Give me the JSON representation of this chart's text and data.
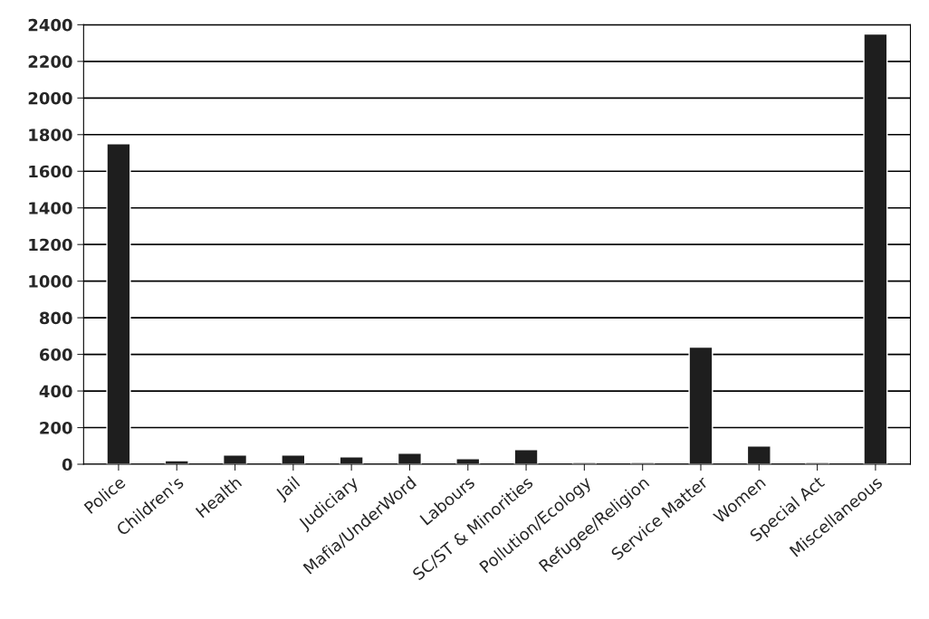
{
  "chart_data": {
    "type": "bar",
    "categories": [
      "Police",
      "Children's",
      "Health",
      "Jail",
      "Judiciary",
      "Mafia/UnderWord",
      "Labours",
      "SC/ST & Minorities",
      "Pollution/Ecology",
      "Refugee/Religion",
      "Service Matter",
      "Women",
      "Special Act",
      "Miscellaneous"
    ],
    "values": [
      1750,
      20,
      50,
      50,
      40,
      60,
      30,
      80,
      10,
      10,
      640,
      100,
      10,
      2350
    ],
    "color": "#1e1e1e",
    "ylim": [
      0,
      2400
    ],
    "yticks": [
      0,
      200,
      400,
      600,
      800,
      1000,
      1200,
      1400,
      1600,
      1800,
      2000,
      2200,
      2400
    ],
    "grid": "y"
  }
}
